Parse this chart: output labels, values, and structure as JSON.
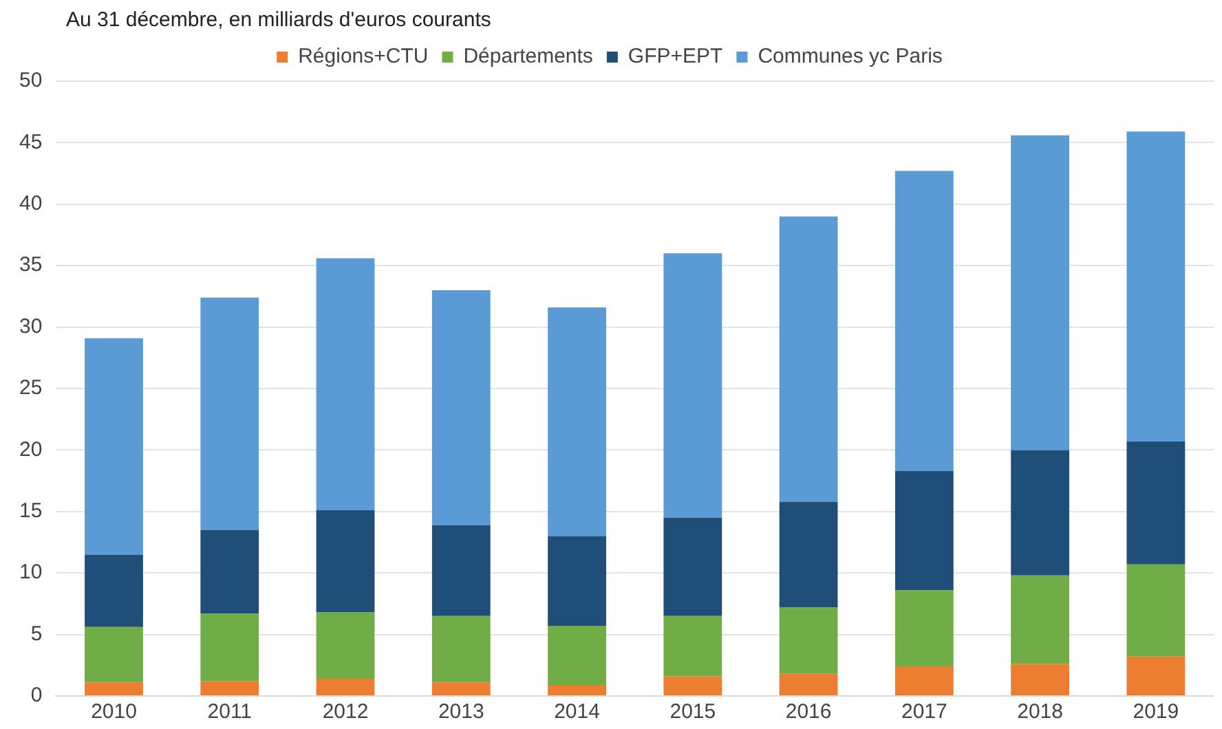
{
  "chart_data": {
    "type": "bar",
    "title": "Au 31 décembre, en milliards d'euros courants",
    "categories": [
      "2010",
      "2011",
      "2012",
      "2013",
      "2014",
      "2015",
      "2016",
      "2017",
      "2018",
      "2019"
    ],
    "series": [
      {
        "name": "Régions+CTU",
        "color": "#ed7d31",
        "values": [
          1.1,
          1.2,
          1.4,
          1.1,
          0.9,
          1.6,
          1.8,
          2.4,
          2.6,
          3.2
        ]
      },
      {
        "name": "Départements",
        "color": "#70ad47",
        "values": [
          4.5,
          5.5,
          5.4,
          5.4,
          4.8,
          4.9,
          5.4,
          6.2,
          7.2,
          7.5
        ]
      },
      {
        "name": "GFP+EPT",
        "color": "#1f4e79",
        "values": [
          5.9,
          6.8,
          8.3,
          7.4,
          7.3,
          8.0,
          8.6,
          9.7,
          10.2,
          10.0
        ]
      },
      {
        "name": "Communes yc Paris",
        "color": "#5b9bd5",
        "values": [
          17.6,
          18.9,
          20.5,
          19.1,
          18.6,
          21.5,
          23.2,
          24.4,
          25.6,
          25.2
        ]
      }
    ],
    "stacked": true,
    "ylim": [
      0,
      50
    ],
    "yticks": [
      0,
      5,
      10,
      15,
      20,
      25,
      30,
      35,
      40,
      45,
      50
    ],
    "grid": "y",
    "legend": "top"
  }
}
